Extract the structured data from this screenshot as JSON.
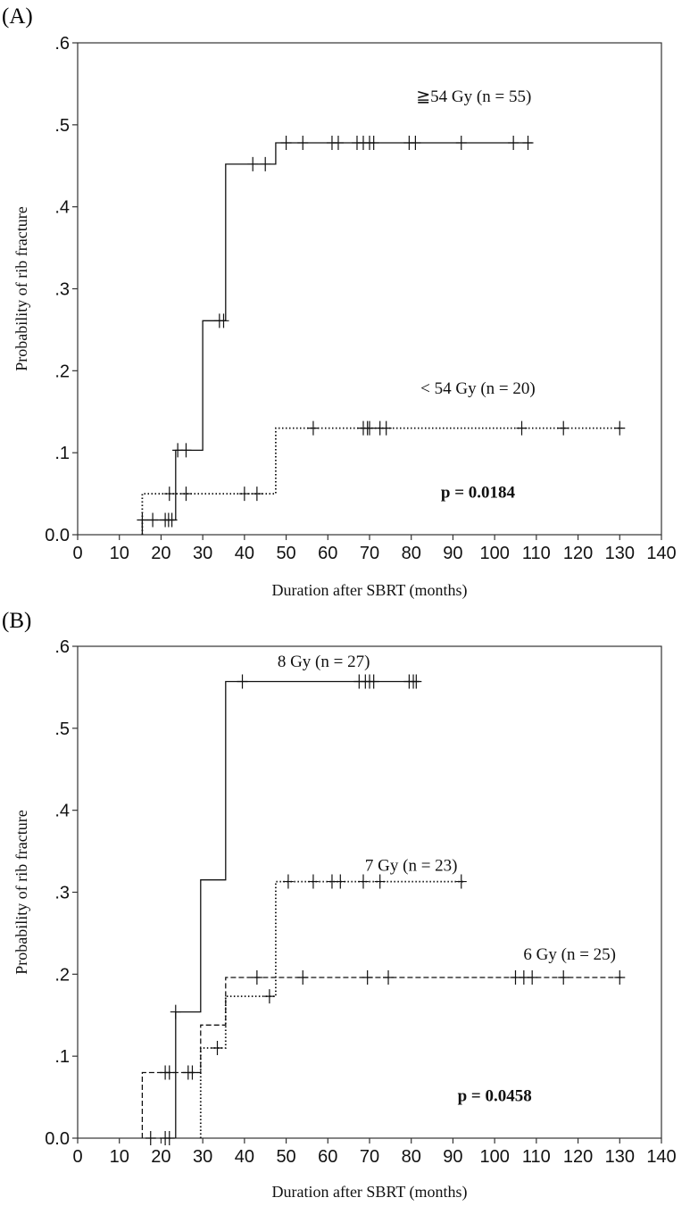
{
  "chart_data": [
    {
      "type": "line",
      "panel_label": "(A)",
      "xlabel": "Duration after SBRT (months)",
      "ylabel": "Probability of rib fracture",
      "xlim": [
        0,
        140
      ],
      "ylim": [
        0,
        0.6
      ],
      "x_ticks": [
        0,
        10,
        20,
        30,
        40,
        50,
        60,
        70,
        80,
        90,
        100,
        110,
        120,
        130,
        140
      ],
      "x_tick_labels": [
        "0",
        "10",
        "20",
        "30",
        "40",
        "50",
        "60",
        "70",
        "80",
        "90",
        "100",
        "110",
        "120",
        "130",
        "140"
      ],
      "y_ticks": [
        0,
        0.1,
        0.2,
        0.3,
        0.4,
        0.5,
        0.6
      ],
      "y_tick_labels": [
        "0.0",
        ".1",
        ".2",
        ".3",
        ".4",
        ".5",
        ".6"
      ],
      "annotation": "p = 0.0184",
      "series": [
        {
          "name": "≧54 Gy (n = 55)",
          "style": "solid",
          "steps": [
            [
              15.5,
              0
            ],
            [
              15.5,
              0.018
            ],
            [
              23.5,
              0.018
            ],
            [
              23.5,
              0.103
            ],
            [
              30,
              0.103
            ],
            [
              30,
              0.261
            ],
            [
              35.5,
              0.261
            ],
            [
              35.5,
              0.452
            ],
            [
              47.5,
              0.452
            ],
            [
              47.5,
              0.478
            ],
            [
              109,
              0.478
            ]
          ],
          "censor_x": [
            15.5,
            18,
            21,
            21.8,
            22.6,
            24,
            26,
            34,
            35,
            42,
            45,
            50,
            54,
            61,
            62.5,
            67,
            68.5,
            70,
            71,
            79.5,
            81,
            92,
            104.5,
            108
          ],
          "censor_y": [
            0.018,
            0.018,
            0.018,
            0.018,
            0.018,
            0.103,
            0.103,
            0.261,
            0.261,
            0.452,
            0.452,
            0.478,
            0.478,
            0.478,
            0.478,
            0.478,
            0.478,
            0.478,
            0.478,
            0.478,
            0.478,
            0.478,
            0.478,
            0.478
          ]
        },
        {
          "name": "< 54 Gy (n = 20)",
          "style": "dotted",
          "steps": [
            [
              15.5,
              0
            ],
            [
              15.5,
              0.05
            ],
            [
              47.5,
              0.05
            ],
            [
              47.5,
              0.13
            ],
            [
              130.5,
              0.13
            ]
          ],
          "censor_x": [
            22,
            26,
            40,
            43,
            56.5,
            68.5,
            69.5,
            70,
            72.5,
            74,
            106.5,
            116.5,
            130
          ],
          "censor_y": [
            0.05,
            0.05,
            0.05,
            0.05,
            0.13,
            0.13,
            0.13,
            0.13,
            0.13,
            0.13,
            0.13,
            0.13,
            0.13
          ]
        }
      ],
      "series_labels": [
        {
          "text": "≧54 Gy (n = 55)",
          "x": 95,
          "y": 0.528
        },
        {
          "text": "< 54 Gy (n = 20)",
          "x": 96,
          "y": 0.172
        }
      ],
      "annotation_pos": {
        "x": 96,
        "y": 0.045
      }
    },
    {
      "type": "line",
      "panel_label": "(B)",
      "xlabel": "Duration after SBRT (months)",
      "ylabel": "Probability of rib fracture",
      "xlim": [
        0,
        140
      ],
      "ylim": [
        0,
        0.6
      ],
      "x_ticks": [
        0,
        10,
        20,
        30,
        40,
        50,
        60,
        70,
        80,
        90,
        100,
        110,
        120,
        130,
        140
      ],
      "x_tick_labels": [
        "0",
        "10",
        "20",
        "30",
        "40",
        "50",
        "60",
        "70",
        "80",
        "90",
        "100",
        "110",
        "120",
        "130",
        "140"
      ],
      "y_ticks": [
        0,
        0.1,
        0.2,
        0.3,
        0.4,
        0.5,
        0.6
      ],
      "y_tick_labels": [
        "0.0",
        ".1",
        ".2",
        ".3",
        ".4",
        ".5",
        ".6"
      ],
      "annotation": "p = 0.0458",
      "series": [
        {
          "name": "8 Gy (n = 27)",
          "style": "solid",
          "steps": [
            [
              23.5,
              0
            ],
            [
              23.5,
              0.154
            ],
            [
              29.5,
              0.154
            ],
            [
              29.5,
              0.315
            ],
            [
              35.5,
              0.315
            ],
            [
              35.5,
              0.557
            ],
            [
              82,
              0.557
            ]
          ],
          "censor_x": [
            23.5,
            39.5,
            67.5,
            69,
            70,
            71,
            79.5,
            80.5,
            81.2
          ],
          "censor_y": [
            0.154,
            0.557,
            0.557,
            0.557,
            0.557,
            0.557,
            0.557,
            0.557,
            0.557
          ]
        },
        {
          "name": "7 Gy (n = 23)",
          "style": "dotted",
          "steps": [
            [
              29.5,
              0
            ],
            [
              29.5,
              0.11
            ],
            [
              35.5,
              0.11
            ],
            [
              35.5,
              0.173
            ],
            [
              47.5,
              0.173
            ],
            [
              47.5,
              0.313
            ],
            [
              92.5,
              0.313
            ]
          ],
          "censor_x": [
            17.5,
            21,
            22,
            33.5,
            46,
            50.5,
            56.5,
            61,
            63,
            68.5,
            72.5,
            92
          ],
          "censor_y": [
            0,
            0,
            0,
            0.11,
            0.173,
            0.313,
            0.313,
            0.313,
            0.313,
            0.313,
            0.313,
            0.313
          ]
        },
        {
          "name": "6 Gy (n = 25)",
          "style": "dashed",
          "steps": [
            [
              15.5,
              0
            ],
            [
              15.5,
              0.08
            ],
            [
              29.5,
              0.08
            ],
            [
              29.5,
              0.138
            ],
            [
              35.5,
              0.138
            ],
            [
              35.5,
              0.196
            ],
            [
              130.5,
              0.196
            ]
          ],
          "censor_x": [
            21,
            22,
            26.5,
            27.5,
            43,
            54,
            69.5,
            74.5,
            105,
            107,
            109,
            116.5,
            130
          ],
          "censor_y": [
            0.08,
            0.08,
            0.08,
            0.08,
            0.196,
            0.196,
            0.196,
            0.196,
            0.196,
            0.196,
            0.196,
            0.196,
            0.196
          ]
        }
      ],
      "series_labels": [
        {
          "text": "8 Gy  (n = 27)",
          "x": 59,
          "y": 0.575
        },
        {
          "text": "7 Gy (n = 23)",
          "x": 80,
          "y": 0.326
        },
        {
          "text": "6 Gy (n = 25)",
          "x": 118,
          "y": 0.218
        }
      ],
      "annotation_pos": {
        "x": 100,
        "y": 0.045
      }
    }
  ]
}
